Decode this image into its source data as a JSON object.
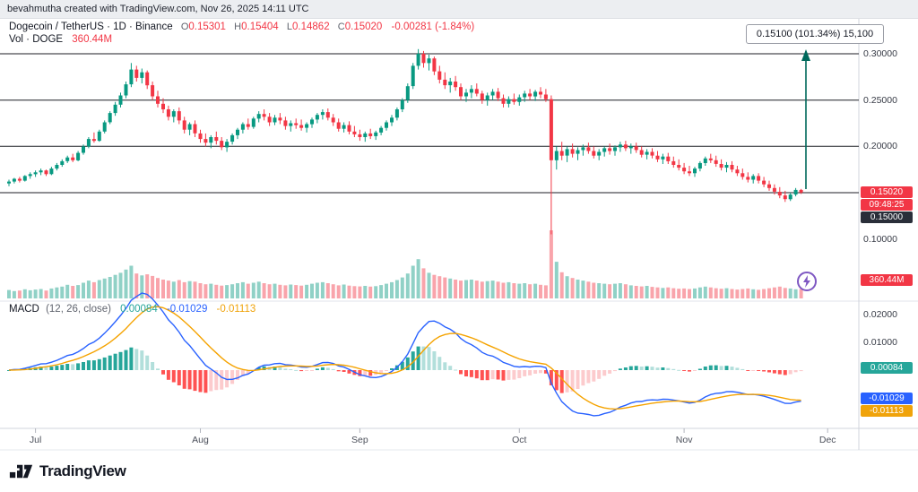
{
  "attribution": "bevahmutha created with TradingView.com, Nov 26, 2025 14:11 UTC",
  "legend": {
    "title": "Dogecoin / TetherUS · 1D · Binance",
    "ohlc": [
      {
        "k": "O",
        "v": "0.15301"
      },
      {
        "k": "H",
        "v": "0.15404"
      },
      {
        "k": "L",
        "v": "0.14862"
      },
      {
        "k": "C",
        "v": "0.15020"
      }
    ],
    "change": "-0.00281 (-1.84%)",
    "vol_label": "Vol · DOGE",
    "vol_value": "360.44M"
  },
  "macd_legend": {
    "name": "MACD",
    "params": "(12, 26, close)",
    "hist": "0.00084",
    "macd": "-0.01029",
    "signal": "-0.01113"
  },
  "callout": {
    "text": "0.15100 (101.34%)  15,100"
  },
  "footer": {
    "brand": "TradingView"
  },
  "chart_data": {
    "type": "candlestick",
    "title": "Dogecoin / TetherUS · 1D · Binance",
    "panes": [
      "price+volume",
      "MACD (12, 26, close)"
    ],
    "levels": [
      0.3,
      0.25,
      0.2,
      0.15
    ],
    "months": [
      {
        "label": "Jul",
        "i": 5
      },
      {
        "label": "Aug",
        "i": 36
      },
      {
        "label": "Sep",
        "i": 66
      },
      {
        "label": "Oct",
        "i": 96
      },
      {
        "label": "Nov",
        "i": 127
      },
      {
        "label": "Dec",
        "i": 154
      }
    ],
    "scale": {
      "price_labels": [
        {
          "text": "0.30000",
          "v": 0.3
        },
        {
          "text": "0.25000",
          "v": 0.25
        },
        {
          "text": "0.20000",
          "v": 0.2
        },
        {
          "text": "0.10000",
          "v": 0.1
        }
      ],
      "current_price": "0.15020",
      "current_price_value": 0.1502,
      "countdown": "09:48:25",
      "line_label": "0.15000",
      "volume_badge": "360.44M",
      "macd_labels": [
        {
          "text": "0.02000",
          "v": 0.02
        },
        {
          "text": "0.01000",
          "v": 0.01
        }
      ],
      "macd_badges": {
        "hist": {
          "text": "0.00084",
          "v": 0.00084
        },
        "macd": {
          "text": "-0.01029",
          "v": -0.01029
        },
        "signal": {
          "text": "-0.01113",
          "v": -0.01113
        }
      }
    },
    "colors": {
      "up": "#089981",
      "down": "#f23645",
      "level_line": "#1c1e24",
      "macd_line": "#2962ff",
      "signal_line": "#f5a300",
      "hist_pos_strong": "#26a69a",
      "hist_pos_weak": "#b2dfdb",
      "hist_neg_strong": "#ff5252",
      "hist_neg_weak": "#fccbcd",
      "arrow": "#00695c",
      "badge_current": "#f23645",
      "badge_line": "#2a2e39",
      "badge_hist": "#26a69a",
      "badge_macd": "#2962ff",
      "badge_signal": "#f0a30a",
      "accent_purple": "#7e57c2"
    },
    "candles": [
      [
        0.16,
        0.164,
        0.157,
        0.162
      ],
      [
        0.162,
        0.166,
        0.16,
        0.165
      ],
      [
        0.165,
        0.167,
        0.161,
        0.163
      ],
      [
        0.163,
        0.169,
        0.162,
        0.168
      ],
      [
        0.168,
        0.172,
        0.165,
        0.17
      ],
      [
        0.17,
        0.174,
        0.167,
        0.172
      ],
      [
        0.172,
        0.176,
        0.169,
        0.174
      ],
      [
        0.174,
        0.175,
        0.168,
        0.17
      ],
      [
        0.17,
        0.178,
        0.169,
        0.176
      ],
      [
        0.176,
        0.182,
        0.174,
        0.18
      ],
      [
        0.18,
        0.186,
        0.178,
        0.184
      ],
      [
        0.184,
        0.19,
        0.182,
        0.188
      ],
      [
        0.188,
        0.192,
        0.183,
        0.185
      ],
      [
        0.185,
        0.195,
        0.184,
        0.193
      ],
      [
        0.193,
        0.202,
        0.191,
        0.2
      ],
      [
        0.2,
        0.21,
        0.198,
        0.208
      ],
      [
        0.208,
        0.215,
        0.204,
        0.206
      ],
      [
        0.206,
        0.218,
        0.205,
        0.216
      ],
      [
        0.216,
        0.228,
        0.214,
        0.226
      ],
      [
        0.226,
        0.238,
        0.224,
        0.236
      ],
      [
        0.236,
        0.248,
        0.233,
        0.245
      ],
      [
        0.245,
        0.258,
        0.242,
        0.255
      ],
      [
        0.255,
        0.27,
        0.252,
        0.267
      ],
      [
        0.267,
        0.29,
        0.264,
        0.283
      ],
      [
        0.283,
        0.287,
        0.27,
        0.274
      ],
      [
        0.274,
        0.284,
        0.268,
        0.28
      ],
      [
        0.28,
        0.282,
        0.262,
        0.266
      ],
      [
        0.266,
        0.27,
        0.25,
        0.254
      ],
      [
        0.254,
        0.26,
        0.242,
        0.246
      ],
      [
        0.246,
        0.252,
        0.236,
        0.24
      ],
      [
        0.24,
        0.244,
        0.228,
        0.232
      ],
      [
        0.232,
        0.24,
        0.226,
        0.238
      ],
      [
        0.238,
        0.242,
        0.224,
        0.228
      ],
      [
        0.228,
        0.232,
        0.214,
        0.218
      ],
      [
        0.218,
        0.226,
        0.212,
        0.224
      ],
      [
        0.224,
        0.228,
        0.21,
        0.214
      ],
      [
        0.214,
        0.218,
        0.204,
        0.208
      ],
      [
        0.208,
        0.214,
        0.2,
        0.204
      ],
      [
        0.204,
        0.212,
        0.198,
        0.21
      ],
      [
        0.21,
        0.216,
        0.202,
        0.206
      ],
      [
        0.206,
        0.21,
        0.196,
        0.199
      ],
      [
        0.199,
        0.208,
        0.194,
        0.205
      ],
      [
        0.205,
        0.214,
        0.202,
        0.212
      ],
      [
        0.212,
        0.22,
        0.208,
        0.218
      ],
      [
        0.218,
        0.226,
        0.214,
        0.224
      ],
      [
        0.224,
        0.23,
        0.218,
        0.221
      ],
      [
        0.221,
        0.232,
        0.219,
        0.23
      ],
      [
        0.23,
        0.238,
        0.226,
        0.235
      ],
      [
        0.235,
        0.24,
        0.228,
        0.232
      ],
      [
        0.232,
        0.236,
        0.222,
        0.226
      ],
      [
        0.226,
        0.234,
        0.223,
        0.231
      ],
      [
        0.231,
        0.236,
        0.224,
        0.228
      ],
      [
        0.228,
        0.232,
        0.218,
        0.222
      ],
      [
        0.222,
        0.228,
        0.216,
        0.225
      ],
      [
        0.225,
        0.23,
        0.219,
        0.223
      ],
      [
        0.223,
        0.229,
        0.217,
        0.22
      ],
      [
        0.22,
        0.226,
        0.215,
        0.224
      ],
      [
        0.224,
        0.231,
        0.22,
        0.229
      ],
      [
        0.229,
        0.236,
        0.225,
        0.234
      ],
      [
        0.234,
        0.24,
        0.229,
        0.237
      ],
      [
        0.237,
        0.241,
        0.228,
        0.231
      ],
      [
        0.231,
        0.235,
        0.222,
        0.226
      ],
      [
        0.226,
        0.23,
        0.216,
        0.219
      ],
      [
        0.219,
        0.226,
        0.215,
        0.223
      ],
      [
        0.223,
        0.227,
        0.213,
        0.216
      ],
      [
        0.216,
        0.222,
        0.21,
        0.213
      ],
      [
        0.213,
        0.218,
        0.206,
        0.21
      ],
      [
        0.21,
        0.216,
        0.205,
        0.214
      ],
      [
        0.214,
        0.219,
        0.208,
        0.211
      ],
      [
        0.211,
        0.217,
        0.207,
        0.215
      ],
      [
        0.215,
        0.222,
        0.212,
        0.22
      ],
      [
        0.22,
        0.228,
        0.217,
        0.226
      ],
      [
        0.226,
        0.234,
        0.222,
        0.231
      ],
      [
        0.231,
        0.242,
        0.228,
        0.24
      ],
      [
        0.24,
        0.252,
        0.237,
        0.25
      ],
      [
        0.25,
        0.268,
        0.247,
        0.265
      ],
      [
        0.265,
        0.29,
        0.262,
        0.287
      ],
      [
        0.287,
        0.305,
        0.283,
        0.3
      ],
      [
        0.3,
        0.303,
        0.285,
        0.29
      ],
      [
        0.29,
        0.299,
        0.282,
        0.295
      ],
      [
        0.295,
        0.297,
        0.277,
        0.281
      ],
      [
        0.281,
        0.287,
        0.268,
        0.272
      ],
      [
        0.272,
        0.28,
        0.262,
        0.266
      ],
      [
        0.266,
        0.274,
        0.258,
        0.27
      ],
      [
        0.27,
        0.276,
        0.26,
        0.264
      ],
      [
        0.264,
        0.268,
        0.25,
        0.254
      ],
      [
        0.254,
        0.262,
        0.248,
        0.258
      ],
      [
        0.258,
        0.266,
        0.252,
        0.262
      ],
      [
        0.262,
        0.268,
        0.254,
        0.257
      ],
      [
        0.257,
        0.26,
        0.246,
        0.25
      ],
      [
        0.25,
        0.258,
        0.244,
        0.255
      ],
      [
        0.255,
        0.262,
        0.25,
        0.259
      ],
      [
        0.259,
        0.263,
        0.249,
        0.252
      ],
      [
        0.252,
        0.256,
        0.242,
        0.246
      ],
      [
        0.246,
        0.254,
        0.242,
        0.251
      ],
      [
        0.251,
        0.257,
        0.245,
        0.248
      ],
      [
        0.248,
        0.256,
        0.244,
        0.253
      ],
      [
        0.253,
        0.26,
        0.248,
        0.257
      ],
      [
        0.257,
        0.262,
        0.25,
        0.254
      ],
      [
        0.254,
        0.261,
        0.249,
        0.259
      ],
      [
        0.259,
        0.264,
        0.252,
        0.256
      ],
      [
        0.256,
        0.262,
        0.248,
        0.251
      ],
      [
        0.251,
        0.255,
        0.105,
        0.185
      ],
      [
        0.185,
        0.2,
        0.175,
        0.195
      ],
      [
        0.195,
        0.205,
        0.185,
        0.19
      ],
      [
        0.19,
        0.2,
        0.183,
        0.197
      ],
      [
        0.197,
        0.203,
        0.188,
        0.192
      ],
      [
        0.192,
        0.199,
        0.185,
        0.196
      ],
      [
        0.196,
        0.202,
        0.19,
        0.199
      ],
      [
        0.199,
        0.204,
        0.192,
        0.195
      ],
      [
        0.195,
        0.2,
        0.187,
        0.19
      ],
      [
        0.19,
        0.197,
        0.185,
        0.194
      ],
      [
        0.194,
        0.2,
        0.189,
        0.198
      ],
      [
        0.198,
        0.203,
        0.191,
        0.195
      ],
      [
        0.195,
        0.201,
        0.19,
        0.199
      ],
      [
        0.199,
        0.205,
        0.194,
        0.202
      ],
      [
        0.202,
        0.206,
        0.195,
        0.198
      ],
      [
        0.198,
        0.203,
        0.192,
        0.2
      ],
      [
        0.2,
        0.204,
        0.193,
        0.196
      ],
      [
        0.196,
        0.2,
        0.188,
        0.191
      ],
      [
        0.191,
        0.197,
        0.186,
        0.194
      ],
      [
        0.194,
        0.198,
        0.187,
        0.19
      ],
      [
        0.19,
        0.195,
        0.183,
        0.186
      ],
      [
        0.186,
        0.192,
        0.181,
        0.189
      ],
      [
        0.189,
        0.193,
        0.181,
        0.184
      ],
      [
        0.184,
        0.189,
        0.177,
        0.18
      ],
      [
        0.18,
        0.186,
        0.174,
        0.177
      ],
      [
        0.177,
        0.182,
        0.17,
        0.173
      ],
      [
        0.173,
        0.179,
        0.168,
        0.171
      ],
      [
        0.171,
        0.178,
        0.167,
        0.176
      ],
      [
        0.176,
        0.184,
        0.173,
        0.182
      ],
      [
        0.182,
        0.189,
        0.179,
        0.187
      ],
      [
        0.187,
        0.192,
        0.182,
        0.185
      ],
      [
        0.185,
        0.19,
        0.178,
        0.181
      ],
      [
        0.181,
        0.186,
        0.174,
        0.177
      ],
      [
        0.177,
        0.183,
        0.172,
        0.18
      ],
      [
        0.18,
        0.184,
        0.172,
        0.175
      ],
      [
        0.175,
        0.179,
        0.168,
        0.171
      ],
      [
        0.171,
        0.176,
        0.164,
        0.167
      ],
      [
        0.167,
        0.172,
        0.161,
        0.164
      ],
      [
        0.164,
        0.17,
        0.16,
        0.168
      ],
      [
        0.168,
        0.171,
        0.16,
        0.163
      ],
      [
        0.163,
        0.167,
        0.156,
        0.159
      ],
      [
        0.159,
        0.163,
        0.152,
        0.155
      ],
      [
        0.155,
        0.159,
        0.148,
        0.151
      ],
      [
        0.151,
        0.156,
        0.144,
        0.147
      ],
      [
        0.147,
        0.152,
        0.14,
        0.143
      ],
      [
        0.143,
        0.15,
        0.141,
        0.148
      ],
      [
        0.148,
        0.155,
        0.146,
        0.153
      ],
      [
        0.15301,
        0.15404,
        0.14862,
        0.1502
      ]
    ],
    "volumes": [
      320,
      280,
      300,
      350,
      310,
      340,
      360,
      300,
      380,
      420,
      450,
      520,
      480,
      510,
      600,
      680,
      620,
      700,
      760,
      820,
      900,
      980,
      1100,
      1250,
      950,
      880,
      920,
      860,
      780,
      720,
      680,
      640,
      700,
      620,
      660,
      640,
      580,
      540,
      560,
      520,
      490,
      510,
      540,
      580,
      620,
      560,
      600,
      640,
      580,
      540,
      560,
      520,
      500,
      530,
      510,
      490,
      520,
      560,
      600,
      620,
      580,
      540,
      500,
      530,
      490,
      470,
      460,
      480,
      450,
      470,
      510,
      560,
      620,
      700,
      800,
      950,
      1250,
      1500,
      1150,
      980,
      900,
      850,
      800,
      760,
      720,
      680,
      700,
      720,
      680,
      640,
      660,
      680,
      640,
      600,
      620,
      580,
      560,
      580,
      540,
      560,
      520,
      500,
      2600,
      1400,
      1000,
      850,
      780,
      720,
      680,
      640,
      600,
      580,
      560,
      540,
      560,
      580,
      540,
      500,
      480,
      460,
      480,
      440,
      420,
      400,
      420,
      390,
      370,
      380,
      360,
      380,
      420,
      450,
      420,
      390,
      370,
      390,
      360,
      340,
      360,
      380,
      350,
      330,
      360,
      390,
      420,
      450,
      400,
      380,
      350,
      360.44
    ]
  }
}
